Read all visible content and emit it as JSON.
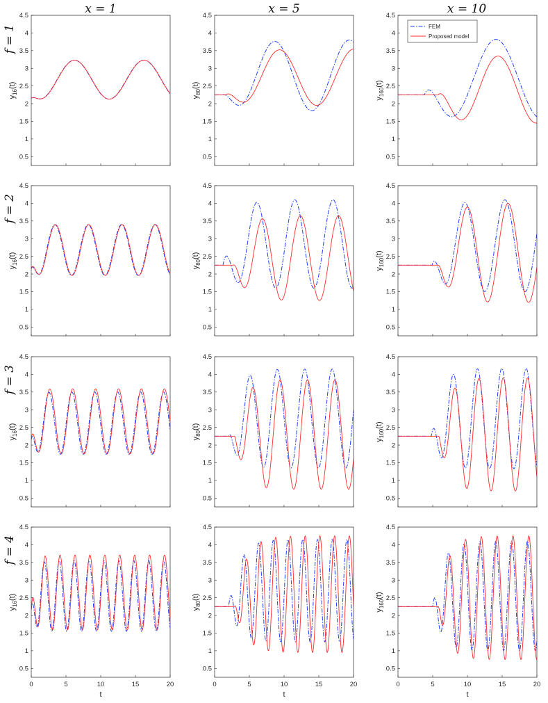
{
  "col_titles": [
    "x = 1",
    "x = 5",
    "x = 10"
  ],
  "row_labels": [
    "f = 1",
    "f = 2",
    "f = 3",
    "f = 4"
  ],
  "legend": {
    "entries": [
      "FEM",
      "Proposed model"
    ],
    "location": "top-right of panel (f = 1, x = 10)"
  },
  "colors": {
    "FEM": "#1f3fff",
    "Proposed model": "#ff2a2a",
    "axes": "#262626"
  },
  "chart_data": {
    "type": "line",
    "layout": "4x3 grid of subplots",
    "shared_x": {
      "label": "t",
      "lim": [
        0,
        20
      ],
      "ticks": [
        0,
        5,
        10,
        15,
        20
      ],
      "tick_labels": [
        "0",
        "5",
        "10",
        "15",
        "20"
      ]
    },
    "shared_y": {
      "lim": [
        0.25,
        4.5
      ],
      "ticks": [
        0.5,
        1,
        1.5,
        2,
        2.5,
        3,
        3.5,
        4,
        4.5
      ],
      "tick_labels": [
        "0.5",
        "1",
        "1.5",
        "2",
        "2.5",
        "3",
        "3.5",
        "4",
        "4.5"
      ]
    },
    "panels": [
      {
        "row": 0,
        "col": 0,
        "ylabel_base": "y",
        "ylabel_sub": "16",
        "ylabel_tail": "(t)",
        "series": [
          {
            "name": "FEM",
            "style": "dash-dot",
            "params": {
              "base": 2.15,
              "onset": 0,
              "mean": 2.68,
              "amp": 0.55,
              "period": 10.0,
              "trough": 1.2,
              "phase_shift": 0,
              "settle": 0.8
            }
          },
          {
            "name": "Proposed model",
            "style": "solid",
            "params": {
              "base": 2.15,
              "onset": 0,
              "mean": 2.68,
              "amp": 0.55,
              "period": 10.0,
              "trough": 1.2,
              "phase_shift": 0.04,
              "settle": 0.8
            }
          }
        ]
      },
      {
        "row": 0,
        "col": 1,
        "ylabel_base": "y",
        "ylabel_sub": "80",
        "ylabel_tail": "(t)",
        "series": [
          {
            "name": "FEM",
            "style": "dash-dot",
            "params": {
              "base": 2.25,
              "onset": 1.2,
              "mean": 2.8,
              "amp": 1.0,
              "period": 10.8,
              "trough": 3.2,
              "phase_shift": 0,
              "settle": 2
            }
          },
          {
            "name": "Proposed model",
            "style": "solid",
            "params": {
              "base": 2.25,
              "onset": 1.6,
              "mean": 2.75,
              "amp": 0.8,
              "period": 10.8,
              "trough": 3.9,
              "phase_shift": 0,
              "settle": 2
            }
          }
        ]
      },
      {
        "row": 0,
        "col": 2,
        "ylabel_base": "y",
        "ylabel_sub": "160",
        "ylabel_tail": "(t)",
        "series": [
          {
            "name": "FEM",
            "style": "dash-dot",
            "params": {
              "base": 2.25,
              "onset": 3.8,
              "mean": 2.7,
              "amp": 1.12,
              "period": 13.0,
              "trough": 7.6,
              "phase_shift": 0,
              "settle": 1.5
            }
          },
          {
            "name": "Proposed model",
            "style": "solid",
            "params": {
              "base": 2.25,
              "onset": 5.8,
              "mean": 2.4,
              "amp": 0.95,
              "period": 11.0,
              "trough": 8.9,
              "phase_shift": 0,
              "settle": 1.5
            }
          }
        ]
      },
      {
        "row": 1,
        "col": 0,
        "ylabel_base": "y",
        "ylabel_sub": "16",
        "ylabel_tail": "(t)",
        "series": [
          {
            "name": "FEM",
            "style": "dash-dot",
            "params": {
              "base": 2.15,
              "onset": 0,
              "mean": 2.68,
              "amp": 0.72,
              "period": 4.8,
              "trough": 1.0,
              "phase_shift": 0,
              "settle": 0.6
            }
          },
          {
            "name": "Proposed model",
            "style": "solid",
            "params": {
              "base": 2.15,
              "onset": 0,
              "mean": 2.68,
              "amp": 0.72,
              "period": 4.8,
              "trough": 1.0,
              "phase_shift": 0.08,
              "settle": 0.6
            }
          }
        ]
      },
      {
        "row": 1,
        "col": 1,
        "ylabel_base": "y",
        "ylabel_sub": "80",
        "ylabel_tail": "(t)",
        "series": [
          {
            "name": "FEM",
            "style": "dash-dot",
            "params": {
              "base": 2.25,
              "onset": 1.2,
              "mean": 2.85,
              "amp": 1.25,
              "period": 5.5,
              "trough": 3.3,
              "phase_shift": 0,
              "settle": 1.5
            }
          },
          {
            "name": "Proposed model",
            "style": "solid",
            "params": {
              "base": 2.25,
              "onset": 2.7,
              "mean": 2.45,
              "amp": 1.2,
              "period": 5.5,
              "trough": 4.1,
              "phase_shift": 0,
              "settle": 1.5
            }
          }
        ]
      },
      {
        "row": 1,
        "col": 2,
        "ylabel_base": "y",
        "ylabel_sub": "160",
        "ylabel_tail": "(t)",
        "series": [
          {
            "name": "FEM",
            "style": "dash-dot",
            "params": {
              "base": 2.25,
              "onset": 4.9,
              "mean": 2.8,
              "amp": 1.3,
              "period": 5.8,
              "trough": 6.7,
              "phase_shift": 0,
              "settle": 1.5
            }
          },
          {
            "name": "Proposed model",
            "style": "solid",
            "params": {
              "base": 2.25,
              "onset": 5.8,
              "mean": 2.6,
              "amp": 1.4,
              "period": 5.9,
              "trough": 7.0,
              "phase_shift": 0,
              "settle": 1.5
            }
          }
        ]
      },
      {
        "row": 2,
        "col": 0,
        "ylabel_base": "y",
        "ylabel_sub": "16",
        "ylabel_tail": "(t)",
        "series": [
          {
            "name": "FEM",
            "style": "dash-dot",
            "params": {
              "base": 2.15,
              "onset": 0,
              "mean": 2.62,
              "amp": 0.88,
              "period": 3.3,
              "trough": 0.9,
              "phase_shift": 0,
              "settle": 0.5
            }
          },
          {
            "name": "Proposed model",
            "style": "solid",
            "params": {
              "base": 2.15,
              "onset": 0,
              "mean": 2.67,
              "amp": 0.92,
              "period": 3.3,
              "trough": 0.9,
              "phase_shift": 0.12,
              "settle": 0.5
            }
          }
        ]
      },
      {
        "row": 2,
        "col": 1,
        "ylabel_base": "y",
        "ylabel_sub": "80",
        "ylabel_tail": "(t)",
        "series": [
          {
            "name": "FEM",
            "style": "dash-dot",
            "params": {
              "base": 2.25,
              "onset": 2.0,
              "mean": 2.75,
              "amp": 1.4,
              "period": 3.95,
              "trough": 3.1,
              "phase_shift": 0,
              "settle": 1.3
            }
          },
          {
            "name": "Proposed model",
            "style": "solid",
            "params": {
              "base": 2.25,
              "onset": 2.9,
              "mean": 2.3,
              "amp": 1.55,
              "period": 3.95,
              "trough": 3.5,
              "phase_shift": 0,
              "settle": 1.3
            }
          }
        ]
      },
      {
        "row": 2,
        "col": 2,
        "ylabel_base": "y",
        "ylabel_sub": "160",
        "ylabel_tail": "(t)",
        "series": [
          {
            "name": "FEM",
            "style": "dash-dot",
            "params": {
              "base": 2.25,
              "onset": 4.8,
              "mean": 2.75,
              "amp": 1.42,
              "period": 3.5,
              "trough": 6.2,
              "phase_shift": 0,
              "settle": 1.3
            }
          },
          {
            "name": "Proposed model",
            "style": "solid",
            "params": {
              "base": 2.25,
              "onset": 5.9,
              "mean": 2.3,
              "amp": 1.6,
              "period": 3.5,
              "trough": 6.4,
              "phase_shift": 0,
              "settle": 1.3
            }
          }
        ]
      },
      {
        "row": 3,
        "col": 0,
        "ylabel_base": "y",
        "ylabel_sub": "16",
        "ylabel_tail": "(t)",
        "series": [
          {
            "name": "FEM",
            "style": "dash-dot",
            "params": {
              "base": 2.15,
              "onset": 0,
              "mean": 2.55,
              "amp": 1.0,
              "period": 2.15,
              "trough": 0.8,
              "phase_shift": 0,
              "settle": 0.5
            }
          },
          {
            "name": "Proposed model",
            "style": "solid",
            "params": {
              "base": 2.15,
              "onset": 0,
              "mean": 2.65,
              "amp": 1.06,
              "period": 2.15,
              "trough": 0.8,
              "phase_shift": 0.12,
              "settle": 0.5
            }
          }
        ]
      },
      {
        "row": 3,
        "col": 1,
        "ylabel_base": "y",
        "ylabel_sub": "80",
        "ylabel_tail": "(t)",
        "series": [
          {
            "name": "FEM",
            "style": "dash-dot",
            "params": {
              "base": 2.25,
              "onset": 2.0,
              "mean": 2.7,
              "amp": 1.45,
              "period": 2.12,
              "trough": 3.15,
              "phase_shift": 0,
              "settle": 1.5
            }
          },
          {
            "name": "Proposed model",
            "style": "solid",
            "params": {
              "base": 2.25,
              "onset": 2.9,
              "mean": 2.6,
              "amp": 1.65,
              "period": 2.12,
              "trough": 3.5,
              "phase_shift": 0,
              "settle": 1.5
            }
          }
        ]
      },
      {
        "row": 3,
        "col": 2,
        "ylabel_base": "y",
        "ylabel_sub": "160",
        "ylabel_tail": "(t)",
        "series": [
          {
            "name": "FEM",
            "style": "dash-dot",
            "params": {
              "base": 2.25,
              "onset": 5.0,
              "mean": 2.55,
              "amp": 1.55,
              "period": 2.28,
              "trough": 6.1,
              "phase_shift": 0,
              "settle": 1.3
            }
          },
          {
            "name": "Proposed model",
            "style": "solid",
            "params": {
              "base": 2.25,
              "onset": 5.8,
              "mean": 2.5,
              "amp": 1.75,
              "period": 2.28,
              "trough": 6.3,
              "phase_shift": 0,
              "settle": 1.3
            }
          }
        ]
      }
    ]
  }
}
